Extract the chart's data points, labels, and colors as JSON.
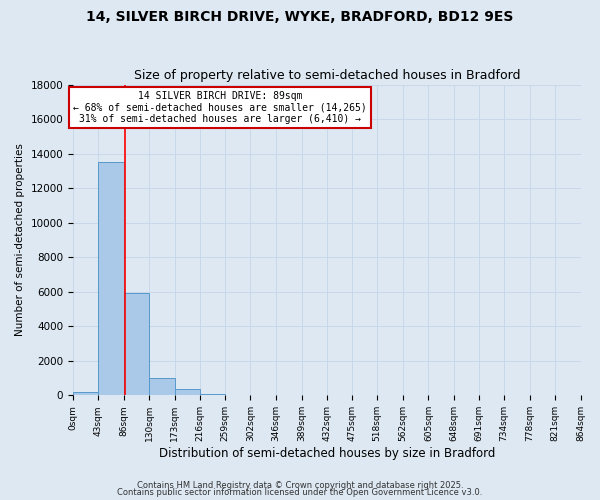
{
  "title": "14, SILVER BIRCH DRIVE, WYKE, BRADFORD, BD12 9ES",
  "subtitle": "Size of property relative to semi-detached houses in Bradford",
  "xlabel": "Distribution of semi-detached houses by size in Bradford",
  "ylabel": "Number of semi-detached properties",
  "bar_values": [
    200,
    13500,
    5950,
    1000,
    350,
    80,
    10,
    0,
    0,
    0,
    0,
    0,
    0,
    0,
    0,
    0,
    0,
    0,
    0,
    0
  ],
  "bin_edges": [
    0,
    43,
    86,
    130,
    173,
    216,
    259,
    302,
    346,
    389,
    432,
    475,
    518,
    562,
    605,
    648,
    691,
    734,
    778,
    821,
    864
  ],
  "tick_labels": [
    "0sqm",
    "43sqm",
    "86sqm",
    "130sqm",
    "173sqm",
    "216sqm",
    "259sqm",
    "302sqm",
    "346sqm",
    "389sqm",
    "432sqm",
    "475sqm",
    "518sqm",
    "562sqm",
    "605sqm",
    "648sqm",
    "691sqm",
    "734sqm",
    "778sqm",
    "821sqm",
    "864sqm"
  ],
  "ylim": [
    0,
    18000
  ],
  "yticks": [
    0,
    2000,
    4000,
    6000,
    8000,
    10000,
    12000,
    14000,
    16000,
    18000
  ],
  "bar_color": "#aac9e8",
  "bar_edge_color": "#5599cc",
  "grid_color": "#c8d8ea",
  "bg_color": "#dde8f2",
  "red_line_x": 89,
  "annotation_title": "14 SILVER BIRCH DRIVE: 89sqm",
  "annotation_line1": "← 68% of semi-detached houses are smaller (14,265)",
  "annotation_line2": "31% of semi-detached houses are larger (6,410) →",
  "footer1": "Contains HM Land Registry data © Crown copyright and database right 2025.",
  "footer2": "Contains public sector information licensed under the Open Government Licence v3.0.",
  "title_fontsize": 10,
  "subtitle_fontsize": 9,
  "annotation_box_color": "#ffffff",
  "annotation_box_edge": "#cc0000"
}
